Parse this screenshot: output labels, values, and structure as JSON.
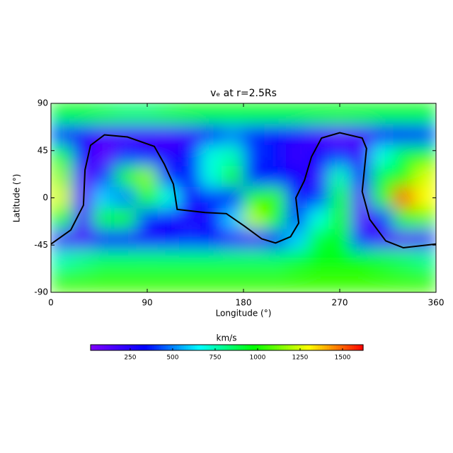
{
  "chart_data": {
    "type": "heatmap",
    "title": "vₑ at r=2.5Rs",
    "xlabel": "Longitude (°)",
    "ylabel": "Latitude (°)",
    "xlim": [
      0,
      360
    ],
    "xticks": [
      0,
      90,
      180,
      270,
      360
    ],
    "ylim": [
      -90,
      90
    ],
    "yticks": [
      -90,
      -45,
      0,
      45,
      90
    ],
    "x": [
      10,
      30,
      50,
      70,
      90,
      110,
      130,
      150,
      170,
      190,
      210,
      230,
      250,
      270,
      290,
      310,
      330,
      350
    ],
    "y": [
      80,
      60,
      40,
      20,
      0,
      -20,
      -40,
      -60,
      -80
    ],
    "z": [
      [
        950,
        950,
        900,
        850,
        850,
        900,
        950,
        950,
        950,
        950,
        950,
        950,
        950,
        950,
        950,
        950,
        950,
        950
      ],
      [
        400,
        250,
        150,
        150,
        150,
        150,
        200,
        350,
        500,
        400,
        300,
        250,
        150,
        100,
        150,
        300,
        350,
        400
      ],
      [
        900,
        300,
        100,
        400,
        350,
        250,
        350,
        700,
        750,
        400,
        350,
        200,
        300,
        400,
        200,
        700,
        900,
        950
      ],
      [
        1150,
        100,
        400,
        1000,
        1150,
        400,
        350,
        700,
        1000,
        350,
        350,
        300,
        200,
        750,
        300,
        900,
        1000,
        1250
      ],
      [
        1250,
        100,
        600,
        500,
        1000,
        700,
        300,
        400,
        350,
        1000,
        1050,
        300,
        400,
        900,
        100,
        1000,
        1500,
        1300
      ],
      [
        950,
        150,
        900,
        1000,
        400,
        300,
        250,
        300,
        600,
        1200,
        1000,
        400,
        700,
        1000,
        100,
        400,
        1000,
        1100
      ],
      [
        150,
        150,
        300,
        300,
        250,
        300,
        400,
        350,
        200,
        150,
        350,
        600,
        900,
        950,
        400,
        150,
        100,
        150
      ],
      [
        750,
        800,
        850,
        850,
        850,
        850,
        850,
        850,
        850,
        850,
        850,
        900,
        950,
        950,
        950,
        900,
        850,
        800
      ],
      [
        1050,
        1050,
        1050,
        1050,
        1050,
        1050,
        1050,
        1050,
        1050,
        1050,
        1050,
        1050,
        1050,
        1050,
        1050,
        1050,
        1050,
        1050
      ]
    ],
    "colormap": [
      "#8000ff",
      "#0000ff",
      "#00ffff",
      "#00ff00",
      "#ffff00",
      "#ff0000"
    ],
    "colorbar": {
      "label": "km/s",
      "lim": [
        17,
        1621
      ],
      "ticks": [
        250,
        500,
        750,
        1000,
        1250,
        1500
      ]
    },
    "contour": {
      "color": "#000000",
      "x": [
        0,
        18.5,
        30.4,
        31.8,
        37,
        50,
        71.5,
        96.6,
        106,
        114.5,
        118,
        144,
        164,
        181,
        197,
        210,
        224,
        231.6,
        229,
        237,
        243.5,
        253,
        270,
        291,
        295,
        291,
        298,
        313,
        329.5,
        360
      ],
      "y": [
        -44,
        -30.7,
        -7,
        26.6,
        50,
        60,
        58,
        49,
        32,
        13,
        -11,
        -14,
        -15,
        -27,
        -39,
        -43,
        -37,
        -24,
        0,
        16.5,
        39,
        57,
        62,
        57,
        47,
        6,
        -20.5,
        -41,
        -47.5,
        -44
      ]
    }
  }
}
